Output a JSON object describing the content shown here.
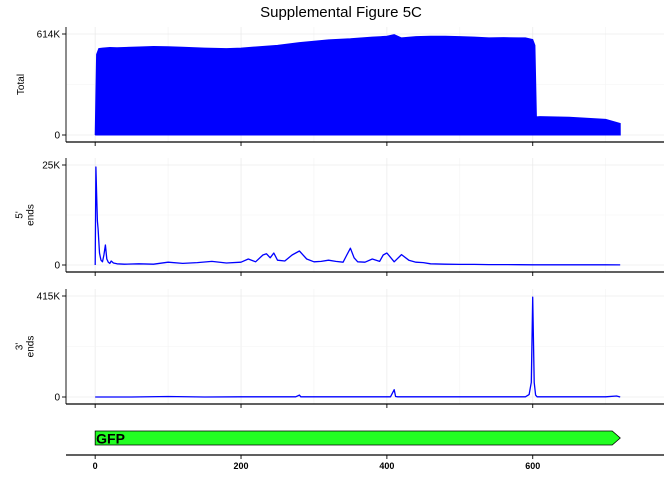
{
  "title": "Supplemental Figure 5C",
  "colors": {
    "signal": "#0000ff",
    "gene_fill": "#22ff22",
    "grid": "#ebebeb",
    "axis": "#000000"
  },
  "x_axis": {
    "range": [
      -40,
      780
    ],
    "ticks": [
      0,
      200,
      400,
      600
    ],
    "tick_labels": [
      "0",
      "200",
      "400",
      "600"
    ]
  },
  "gene": {
    "name": "GFP",
    "start": 0,
    "end": 720,
    "strand": "+"
  },
  "chart_data": [
    {
      "type": "area",
      "ylabel": "Total",
      "ylim": [
        0,
        614000
      ],
      "yticks": [
        0,
        614000
      ],
      "ytick_labels": [
        "0",
        "614K"
      ],
      "series": [
        {
          "x": [
            0,
            2,
            5,
            10,
            20,
            30,
            40,
            60,
            80,
            100,
            120,
            150,
            180,
            200,
            220,
            250,
            280,
            300,
            320,
            350,
            380,
            400,
            410,
            420,
            440,
            460,
            480,
            500,
            520,
            540,
            560,
            580,
            590,
            600,
            603,
            605,
            610,
            650,
            700,
            720
          ],
          "values": [
            0,
            490000,
            525000,
            528000,
            532000,
            530000,
            532000,
            535000,
            538000,
            536000,
            533000,
            528000,
            525000,
            528000,
            535000,
            545000,
            562000,
            570000,
            578000,
            585000,
            595000,
            600000,
            610000,
            590000,
            598000,
            600000,
            600000,
            598000,
            595000,
            590000,
            592000,
            590000,
            590000,
            580000,
            545000,
            110000,
            112000,
            108000,
            95000,
            70000
          ]
        }
      ]
    },
    {
      "type": "line",
      "ylabel": "5' ends",
      "ylim": [
        0,
        25000
      ],
      "yticks": [
        0,
        25000
      ],
      "ytick_labels": [
        "0",
        "25K"
      ],
      "series": [
        {
          "x": [
            0,
            1,
            2,
            3,
            4,
            5,
            6,
            7,
            8,
            10,
            12,
            14,
            16,
            18,
            20,
            22,
            25,
            30,
            40,
            60,
            80,
            100,
            120,
            140,
            160,
            180,
            200,
            210,
            220,
            230,
            235,
            240,
            245,
            250,
            260,
            270,
            280,
            290,
            300,
            310,
            320,
            330,
            340,
            345,
            350,
            355,
            360,
            370,
            380,
            390,
            395,
            400,
            410,
            420,
            430,
            440,
            450,
            460,
            480,
            500,
            520,
            540,
            560,
            580,
            600,
            650,
            700,
            720
          ],
          "values": [
            0,
            24500,
            18000,
            11000,
            9000,
            6000,
            3000,
            2000,
            1200,
            800,
            2500,
            5000,
            1500,
            700,
            400,
            1000,
            500,
            300,
            200,
            300,
            200,
            700,
            400,
            600,
            900,
            500,
            700,
            1500,
            800,
            2500,
            2800,
            1800,
            3000,
            1200,
            1000,
            2500,
            3500,
            1500,
            800,
            900,
            1200,
            900,
            700,
            2500,
            4200,
            1800,
            800,
            700,
            1500,
            900,
            2500,
            3000,
            800,
            2600,
            1200,
            700,
            600,
            300,
            200,
            150,
            150,
            100,
            100,
            80,
            60,
            50,
            40,
            20
          ]
        }
      ]
    },
    {
      "type": "line",
      "ylabel": "3' ends",
      "ylim": [
        0,
        415000
      ],
      "yticks": [
        0,
        415000
      ],
      "ytick_labels": [
        "0",
        "415K"
      ],
      "series": [
        {
          "x": [
            0,
            50,
            100,
            150,
            200,
            250,
            275,
            280,
            282,
            290,
            350,
            400,
            405,
            410,
            412,
            415,
            420,
            480,
            540,
            590,
            595,
            598,
            600,
            602,
            604,
            606,
            610,
            650,
            700,
            715,
            720
          ],
          "values": [
            0,
            0,
            2000,
            0,
            1000,
            1000,
            1000,
            8000,
            1000,
            1000,
            1000,
            1000,
            1000,
            30000,
            2000,
            1000,
            1000,
            1000,
            1000,
            1000,
            10000,
            60000,
            410000,
            60000,
            8000,
            1000,
            1000,
            1000,
            1000,
            4000,
            0
          ]
        }
      ]
    }
  ]
}
